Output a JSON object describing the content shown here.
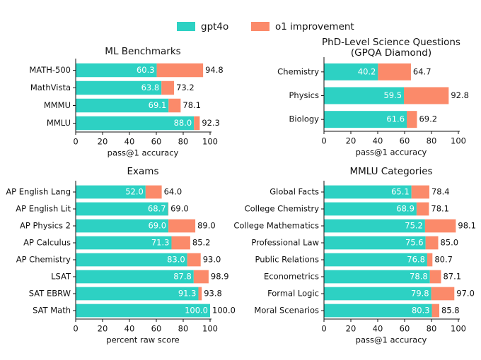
{
  "chart_data": [
    {
      "type": "bar",
      "orientation": "horizontal",
      "title": "ML Benchmarks",
      "xlabel": "pass@1 accuracy",
      "categories": [
        "MATH-500",
        "MathVista",
        "MMMU",
        "MMLU"
      ],
      "series": [
        {
          "name": "gpt4o",
          "color": "#2dd1c3",
          "values": [
            60.3,
            63.8,
            69.1,
            88.0
          ],
          "value_labels": [
            "60.3",
            "63.8",
            "69.1",
            "88.0"
          ]
        },
        {
          "name": "o1 improvement",
          "color": "#fb8a6a",
          "values": [
            34.5,
            9.4,
            9.0,
            4.3
          ]
        }
      ],
      "total_labels": [
        "94.8",
        "73.2",
        "78.1",
        "92.3"
      ],
      "xlim": [
        0,
        100
      ],
      "xticks": [
        0,
        20,
        40,
        60,
        80,
        100
      ]
    },
    {
      "type": "bar",
      "orientation": "horizontal",
      "title": [
        "PhD-Level Science Questions",
        "(GPQA Diamond)"
      ],
      "xlabel": "pass@1 accuracy",
      "categories": [
        "Chemistry",
        "Physics",
        "Biology"
      ],
      "series": [
        {
          "name": "gpt4o",
          "color": "#2dd1c3",
          "values": [
            40.2,
            59.5,
            61.6
          ],
          "value_labels": [
            "40.2",
            "59.5",
            "61.6"
          ]
        },
        {
          "name": "o1 improvement",
          "color": "#fb8a6a",
          "values": [
            24.5,
            33.3,
            7.6
          ]
        }
      ],
      "total_labels": [
        "64.7",
        "92.8",
        "69.2"
      ],
      "xlim": [
        0,
        100
      ],
      "xticks": [
        0,
        20,
        40,
        60,
        80,
        100
      ]
    },
    {
      "type": "bar",
      "orientation": "horizontal",
      "title": "Exams",
      "xlabel": "percent raw score",
      "categories": [
        "AP English Lang",
        "AP English Lit",
        "AP Physics 2",
        "AP Calculus",
        "AP Chemistry",
        "LSAT",
        "SAT EBRW",
        "SAT Math"
      ],
      "series": [
        {
          "name": "gpt4o",
          "color": "#2dd1c3",
          "values": [
            52.0,
            68.7,
            69.0,
            71.3,
            83.0,
            87.8,
            91.3,
            100.0
          ],
          "value_labels": [
            "52.0",
            "68.7",
            "69.0",
            "71.3",
            "83.0",
            "87.8",
            "91.3",
            "100.0"
          ]
        },
        {
          "name": "o1 improvement",
          "color": "#fb8a6a",
          "values": [
            12.0,
            0.3,
            20.0,
            13.9,
            10.0,
            11.1,
            2.5,
            0
          ]
        }
      ],
      "total_labels": [
        "64.0",
        "69.0",
        "89.0",
        "85.2",
        "93.0",
        "98.9",
        "93.8",
        "100.0"
      ],
      "xlim": [
        0,
        100
      ],
      "xticks": [
        0,
        20,
        40,
        60,
        80,
        100
      ]
    },
    {
      "type": "bar",
      "orientation": "horizontal",
      "title": "MMLU Categories",
      "xlabel": "pass@1 accuracy",
      "categories": [
        "Global Facts",
        "College Chemistry",
        "College Mathematics",
        "Professional Law",
        "Public Relations",
        "Econometrics",
        "Formal Logic",
        "Moral Scenarios"
      ],
      "series": [
        {
          "name": "gpt4o",
          "color": "#2dd1c3",
          "values": [
            65.1,
            68.9,
            75.2,
            75.6,
            76.8,
            78.8,
            79.8,
            80.3
          ],
          "value_labels": [
            "65.1",
            "68.9",
            "75.2",
            "75.6",
            "76.8",
            "78.8",
            "79.8",
            "80.3"
          ]
        },
        {
          "name": "o1 improvement",
          "color": "#fb8a6a",
          "values": [
            13.3,
            9.2,
            22.9,
            9.4,
            3.9,
            8.3,
            17.2,
            5.5
          ]
        }
      ],
      "total_labels": [
        "78.4",
        "78.1",
        "98.1",
        "85.0",
        "80.7",
        "87.1",
        "97.0",
        "85.8"
      ],
      "xlim": [
        0,
        100
      ],
      "xticks": [
        0,
        20,
        40,
        60,
        80,
        100
      ]
    }
  ]
}
